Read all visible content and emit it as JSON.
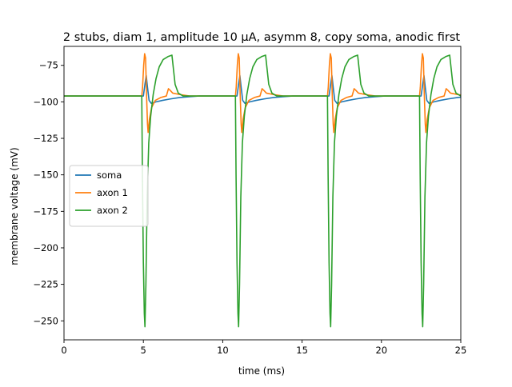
{
  "chart_data": {
    "type": "line",
    "title": "2 stubs, diam 1, amplitude 10 μA, asymm 8, copy soma, anodic first",
    "xlabel": "time (ms)",
    "ylabel": "membrane voltage (mV)",
    "xlim": [
      0,
      25
    ],
    "ylim": [
      -263,
      -62
    ],
    "xticks": [
      0,
      5,
      10,
      15,
      20,
      25
    ],
    "yticks": [
      -75,
      -100,
      -125,
      -150,
      -175,
      -200,
      -225,
      -250
    ],
    "grid": false,
    "legend_position": "center-left",
    "pulse_onsets_ms": [
      4.9,
      10.8,
      16.6,
      22.4
    ],
    "series": [
      {
        "name": "soma",
        "color": "#1f77b4",
        "resting_mV": -96,
        "per_pulse_trace": [
          [
            0.0,
            -96
          ],
          [
            0.1,
            -96
          ],
          [
            0.2,
            -88
          ],
          [
            0.28,
            -82
          ],
          [
            0.36,
            -90
          ],
          [
            0.46,
            -99
          ],
          [
            0.6,
            -101
          ],
          [
            0.9,
            -100
          ],
          [
            1.3,
            -99
          ],
          [
            1.8,
            -98
          ],
          [
            2.4,
            -97
          ],
          [
            3.0,
            -96.5
          ],
          [
            3.6,
            -96
          ],
          [
            5.8,
            -96
          ]
        ]
      },
      {
        "name": "axon 1",
        "color": "#ff7f0e",
        "resting_mV": -96,
        "per_pulse_trace": [
          [
            0.0,
            -96
          ],
          [
            0.05,
            -90
          ],
          [
            0.12,
            -75
          ],
          [
            0.18,
            -67
          ],
          [
            0.24,
            -70
          ],
          [
            0.3,
            -95
          ],
          [
            0.36,
            -115
          ],
          [
            0.4,
            -121
          ],
          [
            0.48,
            -112
          ],
          [
            0.62,
            -104
          ],
          [
            0.85,
            -99
          ],
          [
            1.2,
            -97
          ],
          [
            1.55,
            -96
          ],
          [
            1.68,
            -91
          ],
          [
            1.78,
            -92
          ],
          [
            1.95,
            -94
          ],
          [
            2.4,
            -95
          ],
          [
            3.0,
            -96
          ],
          [
            5.8,
            -96
          ]
        ]
      },
      {
        "name": "axon 2",
        "color": "#2ca02c",
        "resting_mV": -96,
        "per_pulse_trace": [
          [
            0.0,
            -96
          ],
          [
            0.04,
            -150
          ],
          [
            0.1,
            -210
          ],
          [
            0.16,
            -245
          ],
          [
            0.2,
            -254
          ],
          [
            0.26,
            -225
          ],
          [
            0.34,
            -165
          ],
          [
            0.44,
            -128
          ],
          [
            0.56,
            -110
          ],
          [
            0.72,
            -95
          ],
          [
            0.9,
            -84
          ],
          [
            1.1,
            -76
          ],
          [
            1.35,
            -71
          ],
          [
            1.65,
            -69
          ],
          [
            1.9,
            -68
          ],
          [
            1.97,
            -75
          ],
          [
            2.1,
            -88
          ],
          [
            2.3,
            -94
          ],
          [
            2.6,
            -96
          ],
          [
            5.8,
            -96
          ]
        ]
      }
    ]
  }
}
